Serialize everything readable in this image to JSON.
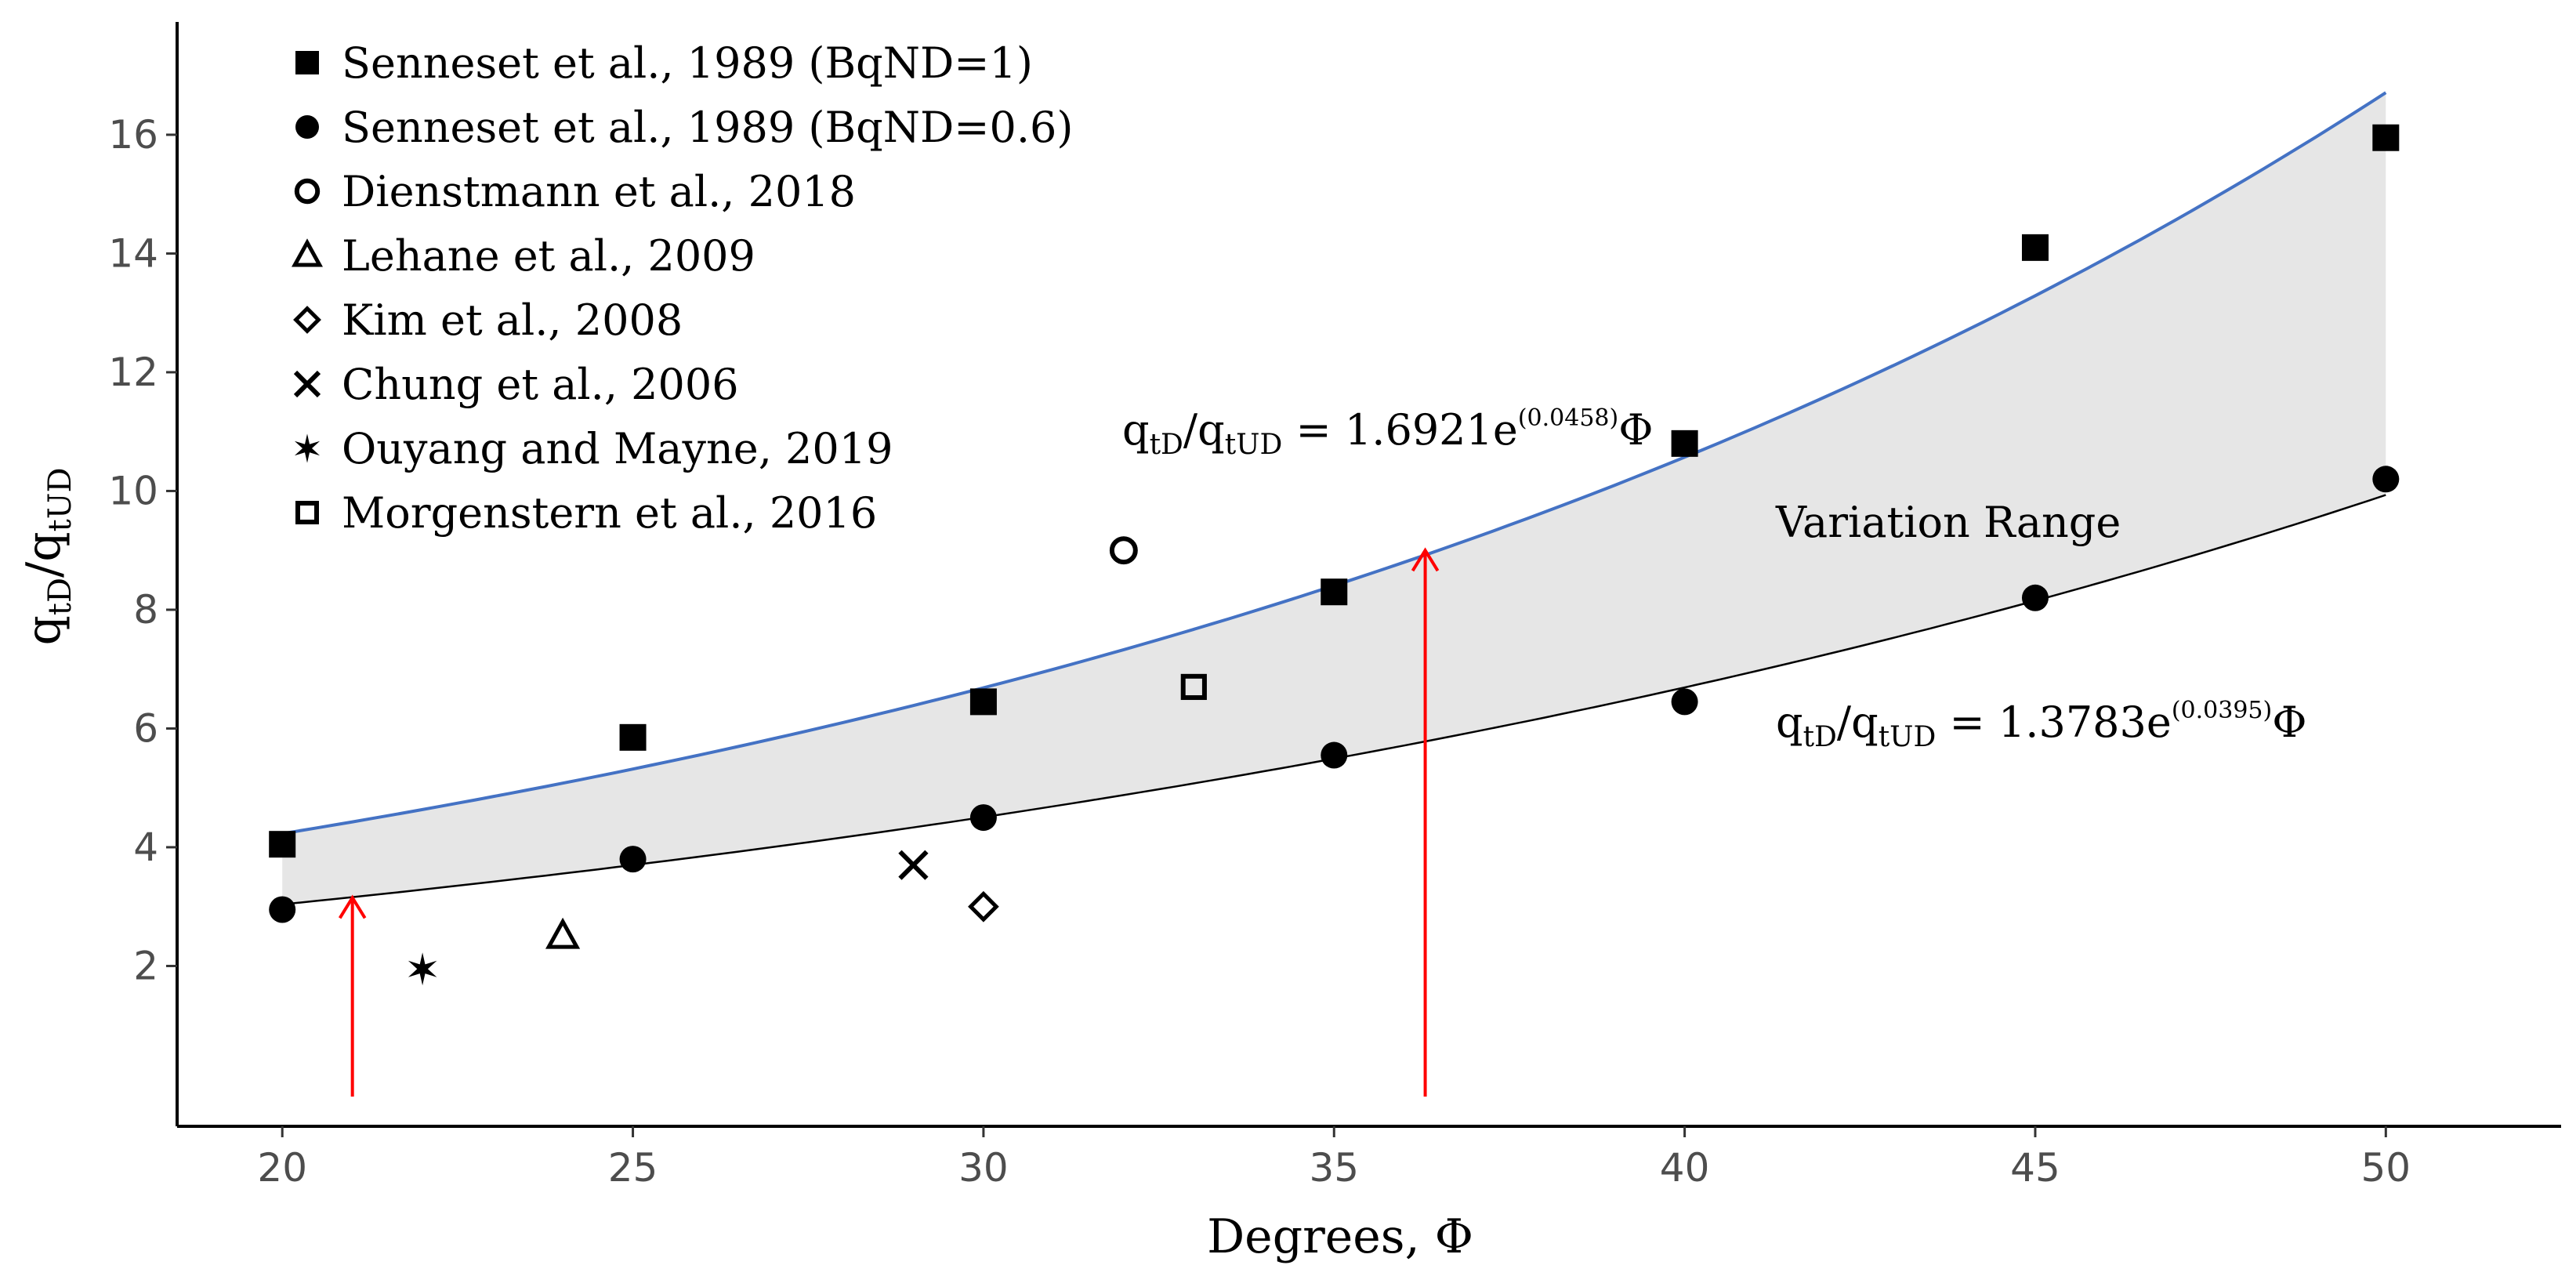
{
  "chart_data": {
    "type": "scatter",
    "xlabel": "Degrees, Φ",
    "ylabel": {
      "base1": "q",
      "sub1": "tD",
      "sep": "/",
      "base2": "q",
      "sub2": "tUD"
    },
    "xlim": [
      18.5,
      52.5
    ],
    "ylim": [
      -0.7,
      17.9
    ],
    "x_ticks": [
      20,
      25,
      30,
      35,
      40,
      45,
      50
    ],
    "y_ticks": [
      2,
      4,
      6,
      8,
      10,
      12,
      14,
      16
    ],
    "grid": false,
    "legend_position": "top-left",
    "series": [
      {
        "name": "Senneset et al., 1989 (BqND=1)",
        "marker": "square-filled",
        "points": [
          [
            20,
            4.05
          ],
          [
            25,
            5.85
          ],
          [
            30,
            6.45
          ],
          [
            35,
            8.3
          ],
          [
            40,
            10.8
          ],
          [
            45,
            14.1
          ],
          [
            50,
            15.95
          ]
        ]
      },
      {
        "name": "Senneset et al., 1989 (BqND=0.6)",
        "marker": "circle-filled",
        "points": [
          [
            20,
            2.95
          ],
          [
            25,
            3.8
          ],
          [
            30,
            4.5
          ],
          [
            35,
            5.55
          ],
          [
            40,
            6.45
          ],
          [
            45,
            8.2
          ],
          [
            50,
            10.2
          ]
        ]
      },
      {
        "name": "Dienstmann et al., 2018",
        "marker": "circle-open",
        "points": [
          [
            32,
            9.0
          ]
        ]
      },
      {
        "name": "Lehane et al., 2009",
        "marker": "triangle-open",
        "points": [
          [
            24,
            2.5
          ]
        ]
      },
      {
        "name": "Kim et al., 2008",
        "marker": "diamond-open",
        "points": [
          [
            30,
            3.0
          ]
        ]
      },
      {
        "name": "Chung et al., 2006",
        "marker": "x",
        "points": [
          [
            29,
            3.7
          ]
        ]
      },
      {
        "name": "Ouyang and Mayne, 2019",
        "marker": "star-filled",
        "points": [
          [
            22,
            1.95
          ]
        ]
      },
      {
        "name": "Morgenstern et al., 2016",
        "marker": "square-open",
        "points": [
          [
            33,
            6.7
          ]
        ]
      }
    ],
    "curves": [
      {
        "role": "upper",
        "a": 1.6921,
        "b": 0.0458,
        "x_range": [
          20,
          50
        ],
        "color": "#4472c4"
      },
      {
        "role": "lower",
        "a": 1.3783,
        "b": 0.0395,
        "x_range": [
          20,
          50
        ],
        "color": "#000000"
      }
    ],
    "band_fill": "#e6e6e6",
    "annotations": {
      "upper_eq": {
        "l1": "q",
        "s1": "tD",
        "sep": "/q",
        "s2": "tUD",
        "mid": " = 1.6921e",
        "sup": "(0.0458)",
        "end": "Φ"
      },
      "lower_eq": {
        "l1": "q",
        "s1": "tD",
        "sep": "/q",
        "s2": "tUD",
        "mid": " = 1.3783e",
        "sup": "(0.0395)",
        "end": "Φ"
      },
      "range_label": "Variation Range"
    },
    "arrows": [
      {
        "x": 21.0,
        "y_from": -0.2,
        "y_to": 3.15,
        "color": "#ff0000"
      },
      {
        "x": 36.3,
        "y_from": -0.2,
        "y_to": 9.0,
        "color": "#ff0000"
      }
    ]
  }
}
